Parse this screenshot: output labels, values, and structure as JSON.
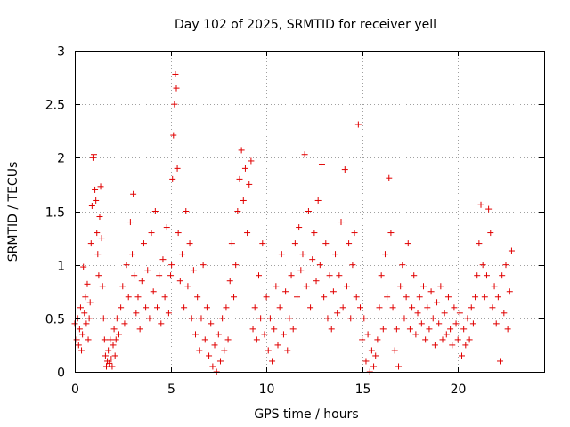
{
  "chart_data": {
    "type": "scatter",
    "title": "Day 102 of 2025, SRMTID for receiver yell",
    "xlabel": "GPS time / hours",
    "ylabel": "SRMTID / TECUs",
    "xlim": [
      0,
      24.5
    ],
    "ylim": [
      0,
      3
    ],
    "x_ticks": [
      0,
      5,
      10,
      15,
      20
    ],
    "x_tick_labels": [
      "0",
      "5",
      "10",
      "15",
      "20"
    ],
    "y_ticks": [
      0,
      0.5,
      1,
      1.5,
      2,
      2.5,
      3
    ],
    "y_tick_labels": [
      "0",
      "0.5",
      "1",
      "1.5",
      "2",
      "2.5",
      "3"
    ],
    "grid": true,
    "marker": "+",
    "color": "#e00000",
    "series": [
      {
        "name": "SRMTID",
        "points": [
          [
            0.0,
            0.45
          ],
          [
            0.1,
            0.3
          ],
          [
            0.15,
            0.5
          ],
          [
            0.2,
            0.25
          ],
          [
            0.25,
            0.4
          ],
          [
            0.3,
            0.6
          ],
          [
            0.35,
            0.2
          ],
          [
            0.4,
            0.35
          ],
          [
            0.45,
            0.98
          ],
          [
            0.5,
            0.55
          ],
          [
            0.55,
            0.7
          ],
          [
            0.6,
            0.45
          ],
          [
            0.65,
            0.82
          ],
          [
            0.7,
            0.3
          ],
          [
            0.75,
            0.5
          ],
          [
            0.8,
            0.65
          ],
          [
            0.85,
            1.2
          ],
          [
            0.9,
            1.55
          ],
          [
            0.95,
            2.0
          ],
          [
            1.0,
            2.03
          ],
          [
            1.05,
            1.7
          ],
          [
            1.1,
            1.6
          ],
          [
            1.15,
            1.3
          ],
          [
            1.2,
            1.1
          ],
          [
            1.25,
            0.9
          ],
          [
            1.3,
            1.45
          ],
          [
            1.35,
            1.73
          ],
          [
            1.4,
            1.25
          ],
          [
            1.45,
            0.8
          ],
          [
            1.5,
            0.5
          ],
          [
            1.55,
            0.3
          ],
          [
            1.6,
            0.15
          ],
          [
            1.65,
            0.05
          ],
          [
            1.7,
            0.1
          ],
          [
            1.75,
            0.2
          ],
          [
            1.8,
            0.08
          ],
          [
            1.85,
            0.3
          ],
          [
            1.9,
            0.12
          ],
          [
            1.95,
            0.05
          ],
          [
            2.0,
            0.25
          ],
          [
            2.05,
            0.4
          ],
          [
            2.1,
            0.15
          ],
          [
            2.15,
            0.3
          ],
          [
            2.2,
            0.5
          ],
          [
            2.3,
            0.35
          ],
          [
            2.4,
            0.6
          ],
          [
            2.5,
            0.8
          ],
          [
            2.6,
            0.45
          ],
          [
            2.7,
            1.0
          ],
          [
            2.8,
            0.7
          ],
          [
            2.9,
            1.4
          ],
          [
            3.0,
            1.1
          ],
          [
            3.05,
            1.66
          ],
          [
            3.1,
            0.9
          ],
          [
            3.2,
            0.55
          ],
          [
            3.3,
            0.7
          ],
          [
            3.4,
            0.4
          ],
          [
            3.5,
            0.85
          ],
          [
            3.6,
            1.2
          ],
          [
            3.7,
            0.6
          ],
          [
            3.8,
            0.95
          ],
          [
            3.9,
            0.5
          ],
          [
            4.0,
            1.3
          ],
          [
            4.1,
            0.75
          ],
          [
            4.2,
            1.5
          ],
          [
            4.3,
            0.6
          ],
          [
            4.4,
            0.9
          ],
          [
            4.5,
            0.45
          ],
          [
            4.6,
            1.05
          ],
          [
            4.7,
            0.7
          ],
          [
            4.8,
            1.35
          ],
          [
            4.9,
            0.55
          ],
          [
            5.0,
            0.9
          ],
          [
            5.05,
            1.0
          ],
          [
            5.1,
            1.8
          ],
          [
            5.15,
            2.21
          ],
          [
            5.2,
            2.5
          ],
          [
            5.25,
            2.78
          ],
          [
            5.3,
            2.65
          ],
          [
            5.35,
            1.9
          ],
          [
            5.4,
            1.3
          ],
          [
            5.5,
            0.85
          ],
          [
            5.6,
            1.1
          ],
          [
            5.7,
            0.6
          ],
          [
            5.8,
            1.5
          ],
          [
            5.9,
            0.8
          ],
          [
            6.0,
            1.2
          ],
          [
            6.1,
            0.5
          ],
          [
            6.2,
            0.95
          ],
          [
            6.3,
            0.35
          ],
          [
            6.4,
            0.7
          ],
          [
            6.5,
            0.2
          ],
          [
            6.6,
            0.5
          ],
          [
            6.7,
            1.0
          ],
          [
            6.8,
            0.3
          ],
          [
            6.9,
            0.6
          ],
          [
            7.0,
            0.15
          ],
          [
            7.1,
            0.45
          ],
          [
            7.2,
            0.05
          ],
          [
            7.3,
            0.25
          ],
          [
            7.4,
            0.0
          ],
          [
            7.5,
            0.35
          ],
          [
            7.6,
            0.1
          ],
          [
            7.7,
            0.5
          ],
          [
            7.8,
            0.2
          ],
          [
            7.9,
            0.6
          ],
          [
            8.0,
            0.3
          ],
          [
            8.1,
            0.85
          ],
          [
            8.2,
            1.2
          ],
          [
            8.3,
            0.7
          ],
          [
            8.4,
            1.0
          ],
          [
            8.5,
            1.5
          ],
          [
            8.6,
            1.8
          ],
          [
            8.7,
            2.07
          ],
          [
            8.8,
            1.6
          ],
          [
            8.9,
            1.9
          ],
          [
            9.0,
            1.3
          ],
          [
            9.1,
            1.75
          ],
          [
            9.2,
            1.97
          ],
          [
            9.3,
            0.4
          ],
          [
            9.4,
            0.6
          ],
          [
            9.5,
            0.3
          ],
          [
            9.6,
            0.9
          ],
          [
            9.7,
            0.5
          ],
          [
            9.8,
            1.2
          ],
          [
            9.9,
            0.35
          ],
          [
            10.0,
            0.7
          ],
          [
            10.1,
            0.2
          ],
          [
            10.2,
            0.5
          ],
          [
            10.3,
            0.1
          ],
          [
            10.4,
            0.4
          ],
          [
            10.5,
            0.8
          ],
          [
            10.6,
            0.25
          ],
          [
            10.7,
            0.6
          ],
          [
            10.8,
            1.1
          ],
          [
            10.9,
            0.35
          ],
          [
            11.0,
            0.75
          ],
          [
            11.1,
            0.2
          ],
          [
            11.2,
            0.5
          ],
          [
            11.3,
            0.9
          ],
          [
            11.4,
            0.4
          ],
          [
            11.5,
            1.2
          ],
          [
            11.6,
            0.7
          ],
          [
            11.7,
            1.35
          ],
          [
            11.8,
            0.95
          ],
          [
            11.9,
            1.1
          ],
          [
            12.0,
            2.03
          ],
          [
            12.1,
            0.8
          ],
          [
            12.2,
            1.5
          ],
          [
            12.3,
            0.6
          ],
          [
            12.4,
            1.05
          ],
          [
            12.5,
            1.3
          ],
          [
            12.6,
            0.85
          ],
          [
            12.7,
            1.6
          ],
          [
            12.8,
            1.0
          ],
          [
            12.9,
            1.94
          ],
          [
            13.0,
            0.7
          ],
          [
            13.1,
            1.2
          ],
          [
            13.2,
            0.5
          ],
          [
            13.3,
            0.9
          ],
          [
            13.4,
            0.4
          ],
          [
            13.5,
            0.75
          ],
          [
            13.6,
            1.1
          ],
          [
            13.7,
            0.55
          ],
          [
            13.8,
            0.9
          ],
          [
            13.9,
            1.4
          ],
          [
            14.0,
            0.6
          ],
          [
            14.1,
            1.89
          ],
          [
            14.2,
            0.8
          ],
          [
            14.3,
            1.2
          ],
          [
            14.4,
            0.5
          ],
          [
            14.5,
            1.0
          ],
          [
            14.6,
            1.3
          ],
          [
            14.7,
            0.7
          ],
          [
            14.8,
            2.31
          ],
          [
            14.9,
            0.6
          ],
          [
            15.0,
            0.3
          ],
          [
            15.1,
            0.5
          ],
          [
            15.2,
            0.1
          ],
          [
            15.3,
            0.35
          ],
          [
            15.4,
            0.0
          ],
          [
            15.5,
            0.2
          ],
          [
            15.6,
            0.05
          ],
          [
            15.7,
            0.15
          ],
          [
            15.8,
            0.3
          ],
          [
            15.9,
            0.6
          ],
          [
            16.0,
            0.9
          ],
          [
            16.1,
            0.4
          ],
          [
            16.2,
            1.1
          ],
          [
            16.3,
            0.7
          ],
          [
            16.4,
            1.81
          ],
          [
            16.5,
            1.3
          ],
          [
            16.6,
            0.6
          ],
          [
            16.7,
            0.2
          ],
          [
            16.8,
            0.4
          ],
          [
            16.9,
            0.05
          ],
          [
            17.0,
            0.8
          ],
          [
            17.1,
            1.0
          ],
          [
            17.2,
            0.5
          ],
          [
            17.3,
            0.7
          ],
          [
            17.4,
            1.2
          ],
          [
            17.5,
            0.4
          ],
          [
            17.6,
            0.6
          ],
          [
            17.7,
            0.9
          ],
          [
            17.8,
            0.35
          ],
          [
            17.9,
            0.55
          ],
          [
            18.0,
            0.7
          ],
          [
            18.1,
            0.45
          ],
          [
            18.2,
            0.8
          ],
          [
            18.3,
            0.3
          ],
          [
            18.4,
            0.6
          ],
          [
            18.5,
            0.4
          ],
          [
            18.6,
            0.75
          ],
          [
            18.7,
            0.5
          ],
          [
            18.8,
            0.25
          ],
          [
            18.9,
            0.65
          ],
          [
            19.0,
            0.45
          ],
          [
            19.1,
            0.8
          ],
          [
            19.2,
            0.3
          ],
          [
            19.3,
            0.55
          ],
          [
            19.4,
            0.35
          ],
          [
            19.5,
            0.7
          ],
          [
            19.6,
            0.4
          ],
          [
            19.7,
            0.25
          ],
          [
            19.8,
            0.6
          ],
          [
            19.9,
            0.45
          ],
          [
            20.0,
            0.3
          ],
          [
            20.1,
            0.55
          ],
          [
            20.2,
            0.15
          ],
          [
            20.3,
            0.4
          ],
          [
            20.4,
            0.25
          ],
          [
            20.5,
            0.5
          ],
          [
            20.6,
            0.3
          ],
          [
            20.7,
            0.6
          ],
          [
            20.8,
            0.45
          ],
          [
            20.9,
            0.7
          ],
          [
            21.0,
            0.9
          ],
          [
            21.1,
            1.2
          ],
          [
            21.2,
            1.56
          ],
          [
            21.3,
            1.0
          ],
          [
            21.4,
            0.7
          ],
          [
            21.5,
            0.9
          ],
          [
            21.6,
            1.52
          ],
          [
            21.7,
            1.3
          ],
          [
            21.8,
            0.6
          ],
          [
            21.9,
            0.8
          ],
          [
            22.0,
            0.45
          ],
          [
            22.1,
            0.7
          ],
          [
            22.2,
            0.1
          ],
          [
            22.3,
            0.9
          ],
          [
            22.4,
            0.55
          ],
          [
            22.5,
            1.0
          ],
          [
            22.6,
            0.4
          ],
          [
            22.7,
            0.75
          ],
          [
            22.8,
            1.13
          ]
        ]
      }
    ]
  }
}
